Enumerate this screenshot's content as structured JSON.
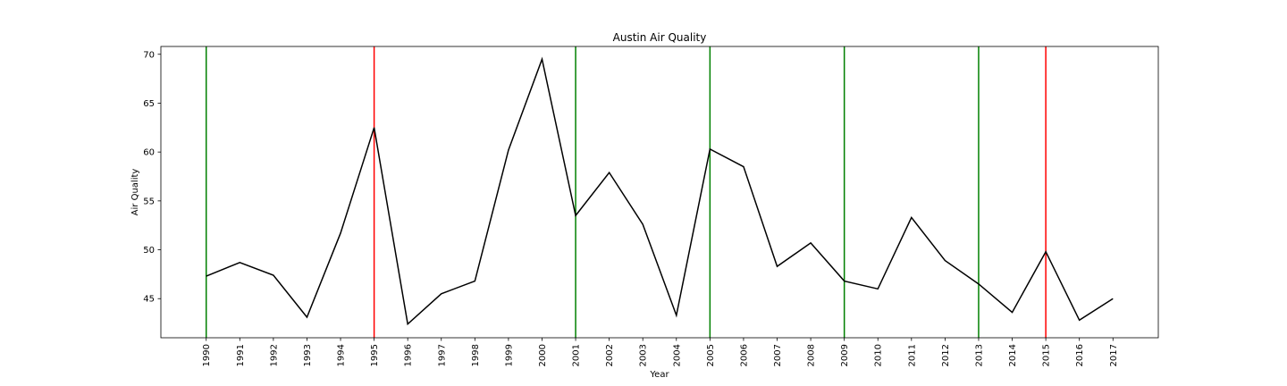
{
  "chart_data": {
    "type": "line",
    "title": "Austin Air Quality",
    "xlabel": "Year",
    "ylabel": "Air Quality",
    "x": [
      1990,
      1991,
      1992,
      1993,
      1994,
      1995,
      1996,
      1997,
      1998,
      1999,
      2000,
      2001,
      2002,
      2003,
      2004,
      2005,
      2006,
      2007,
      2008,
      2009,
      2010,
      2011,
      2012,
      2013,
      2014,
      2015,
      2016,
      2017
    ],
    "x_tick_labels": [
      "1990",
      "1991",
      "1992",
      "1993",
      "1994",
      "1995",
      "1996",
      "1997",
      "1998",
      "1999",
      "2000",
      "2001",
      "2002",
      "2003",
      "2004",
      "2005",
      "2006",
      "2007",
      "2008",
      "2009",
      "2010",
      "2011",
      "2012",
      "2013",
      "2014",
      "2015",
      "2016",
      "2017"
    ],
    "series": [
      {
        "color": "#000000",
        "values": [
          47.3,
          48.7,
          47.4,
          43.1,
          51.7,
          62.5,
          42.4,
          45.5,
          46.8,
          60.2,
          69.5,
          53.5,
          57.9,
          52.6,
          43.3,
          60.3,
          58.5,
          48.3,
          50.7,
          46.8,
          46.0,
          53.3,
          48.9,
          46.5,
          43.6,
          49.8,
          42.8,
          45.0
        ]
      }
    ],
    "vertical_lines": [
      {
        "x": 1990,
        "color": "#008000"
      },
      {
        "x": 1995,
        "color": "#ff0000"
      },
      {
        "x": 2001,
        "color": "#008000"
      },
      {
        "x": 2005,
        "color": "#008000"
      },
      {
        "x": 2009,
        "color": "#008000"
      },
      {
        "x": 2013,
        "color": "#008000"
      },
      {
        "x": 2015,
        "color": "#ff0000"
      }
    ],
    "y_ticks": [
      45,
      50,
      55,
      60,
      65,
      70
    ],
    "ylim": [
      41.0,
      70.8
    ],
    "xlim": [
      1988.65,
      2018.35
    ],
    "grid": false,
    "legend": "none"
  }
}
